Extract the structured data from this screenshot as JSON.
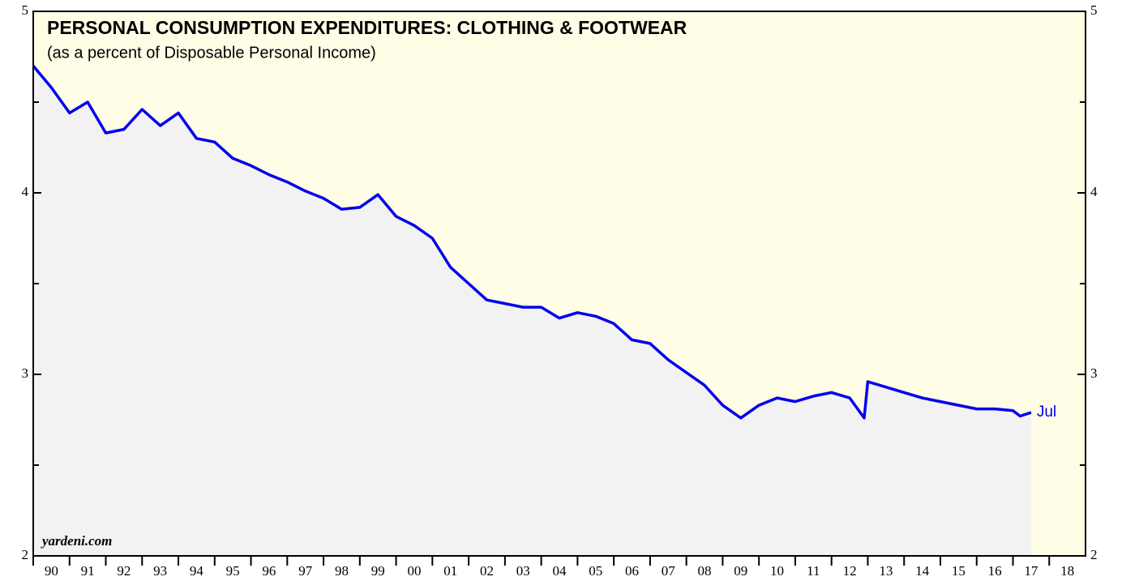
{
  "chart_data": {
    "type": "area-line",
    "title": "PERSONAL CONSUMPTION EXPENDITURES: CLOTHING & FOOTWEAR",
    "subtitle": "(as a percent of Disposable Personal Income)",
    "source": "yardeni.com",
    "annotation": "Jul",
    "x": [
      1990.0,
      1990.5,
      1991.0,
      1991.5,
      1992.0,
      1992.5,
      1993.0,
      1993.5,
      1994.0,
      1994.5,
      1995.0,
      1995.5,
      1996.0,
      1996.5,
      1997.0,
      1997.5,
      1998.0,
      1998.5,
      1999.0,
      1999.5,
      2000.0,
      2000.5,
      2001.0,
      2001.5,
      2002.0,
      2002.5,
      2003.0,
      2003.5,
      2004.0,
      2004.5,
      2005.0,
      2005.5,
      2006.0,
      2006.5,
      2007.0,
      2007.5,
      2008.0,
      2008.5,
      2009.0,
      2009.5,
      2010.0,
      2010.5,
      2011.0,
      2011.5,
      2012.0,
      2012.5,
      2012.9,
      2013.0,
      2013.5,
      2014.0,
      2014.5,
      2015.0,
      2015.5,
      2016.0,
      2016.5,
      2017.0,
      2017.2,
      2017.5
    ],
    "values": [
      4.7,
      4.58,
      4.44,
      4.5,
      4.33,
      4.35,
      4.46,
      4.37,
      4.44,
      4.3,
      4.28,
      4.19,
      4.15,
      4.1,
      4.06,
      4.01,
      3.97,
      3.91,
      3.92,
      3.99,
      3.87,
      3.82,
      3.75,
      3.59,
      3.5,
      3.41,
      3.39,
      3.37,
      3.37,
      3.31,
      3.34,
      3.32,
      3.28,
      3.19,
      3.17,
      3.08,
      3.01,
      2.94,
      2.83,
      2.76,
      2.83,
      2.87,
      2.85,
      2.88,
      2.9,
      2.87,
      2.76,
      2.96,
      2.93,
      2.9,
      2.87,
      2.85,
      2.83,
      2.81,
      2.81,
      2.8,
      2.77,
      2.79
    ],
    "color": "#0000ee",
    "area_color": "#f2f2f2",
    "background": "#fffde6",
    "xlim": [
      1990,
      2019
    ],
    "xticks": [
      {
        "value": 1990,
        "label": "90"
      },
      {
        "value": 1991,
        "label": "91"
      },
      {
        "value": 1992,
        "label": "92"
      },
      {
        "value": 1993,
        "label": "93"
      },
      {
        "value": 1994,
        "label": "94"
      },
      {
        "value": 1995,
        "label": "95"
      },
      {
        "value": 1996,
        "label": "96"
      },
      {
        "value": 1997,
        "label": "97"
      },
      {
        "value": 1998,
        "label": "98"
      },
      {
        "value": 1999,
        "label": "99"
      },
      {
        "value": 2000,
        "label": "00"
      },
      {
        "value": 2001,
        "label": "01"
      },
      {
        "value": 2002,
        "label": "02"
      },
      {
        "value": 2003,
        "label": "03"
      },
      {
        "value": 2004,
        "label": "04"
      },
      {
        "value": 2005,
        "label": "05"
      },
      {
        "value": 2006,
        "label": "06"
      },
      {
        "value": 2007,
        "label": "07"
      },
      {
        "value": 2008,
        "label": "08"
      },
      {
        "value": 2009,
        "label": "09"
      },
      {
        "value": 2010,
        "label": "10"
      },
      {
        "value": 2011,
        "label": "11"
      },
      {
        "value": 2012,
        "label": "12"
      },
      {
        "value": 2013,
        "label": "13"
      },
      {
        "value": 2014,
        "label": "14"
      },
      {
        "value": 2015,
        "label": "15"
      },
      {
        "value": 2016,
        "label": "16"
      },
      {
        "value": 2017,
        "label": "17"
      },
      {
        "value": 2018,
        "label": "18"
      }
    ],
    "ylim": [
      2,
      5
    ],
    "yticks": [
      2,
      3,
      4,
      5
    ],
    "minor_yticks": [
      2.5,
      3.5,
      4.5
    ]
  }
}
